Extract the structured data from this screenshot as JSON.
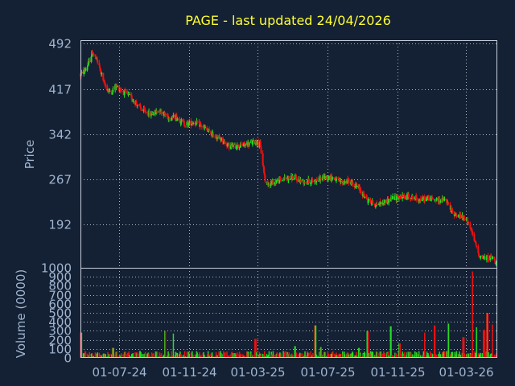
{
  "chart_data": [
    {
      "type": "candlestick",
      "title": "PAGE - last updated 24/04/2026",
      "ylabel": "Price",
      "y_ticks": [
        192,
        267,
        342,
        417,
        492
      ],
      "ylim": [
        120,
        498
      ],
      "x_ticks": [
        "01-07-24",
        "01-11-24",
        "01-03-25",
        "01-07-25",
        "01-11-25",
        "01-03-26"
      ],
      "x_range": [
        "2024-04-24",
        "2026-04-24"
      ],
      "up_color": "#22dd22",
      "down_color": "#ee1111",
      "grid": true,
      "price_path": [
        [
          "2024-04-24",
          440
        ],
        [
          "2024-05-05",
          452
        ],
        [
          "2024-05-15",
          478
        ],
        [
          "2024-05-25",
          460
        ],
        [
          "2024-06-05",
          425
        ],
        [
          "2024-06-15",
          410
        ],
        [
          "2024-06-25",
          422
        ],
        [
          "2024-07-05",
          415
        ],
        [
          "2024-07-15",
          408
        ],
        [
          "2024-07-25",
          400
        ],
        [
          "2024-08-10",
          382
        ],
        [
          "2024-08-25",
          375
        ],
        [
          "2024-09-10",
          382
        ],
        [
          "2024-09-25",
          370
        ],
        [
          "2024-10-10",
          370
        ],
        [
          "2024-10-25",
          358
        ],
        [
          "2024-11-10",
          362
        ],
        [
          "2024-11-25",
          354
        ],
        [
          "2024-12-10",
          342
        ],
        [
          "2024-12-25",
          335
        ],
        [
          "2025-01-10",
          322
        ],
        [
          "2025-01-25",
          322
        ],
        [
          "2025-02-10",
          325
        ],
        [
          "2025-02-25",
          330
        ],
        [
          "2025-03-05",
          325
        ],
        [
          "2025-03-15",
          260
        ],
        [
          "2025-03-30",
          262
        ],
        [
          "2025-04-15",
          268
        ],
        [
          "2025-05-01",
          270
        ],
        [
          "2025-05-20",
          263
        ],
        [
          "2025-06-10",
          265
        ],
        [
          "2025-06-25",
          270
        ],
        [
          "2025-07-10",
          270
        ],
        [
          "2025-07-25",
          262
        ],
        [
          "2025-08-10",
          264
        ],
        [
          "2025-08-25",
          252
        ],
        [
          "2025-09-10",
          232
        ],
        [
          "2025-09-25",
          225
        ],
        [
          "2025-10-10",
          230
        ],
        [
          "2025-10-25",
          236
        ],
        [
          "2025-11-10",
          238
        ],
        [
          "2025-11-25",
          238
        ],
        [
          "2025-12-10",
          233
        ],
        [
          "2025-12-25",
          236
        ],
        [
          "2026-01-10",
          232
        ],
        [
          "2026-01-25",
          232
        ],
        [
          "2026-02-05",
          212
        ],
        [
          "2026-02-20",
          205
        ],
        [
          "2026-03-05",
          198
        ],
        [
          "2026-03-15",
          168
        ],
        [
          "2026-03-25",
          140
        ],
        [
          "2026-04-05",
          135
        ],
        [
          "2026-04-15",
          138
        ],
        [
          "2026-04-24",
          130
        ]
      ]
    },
    {
      "type": "bar",
      "ylabel": "Volume (0000)",
      "y_ticks": [
        0,
        100,
        200,
        300,
        400,
        500,
        600,
        700,
        800,
        900,
        1000
      ],
      "ylim": [
        0,
        1000
      ],
      "x_range": [
        "2024-04-24",
        "2026-04-24"
      ],
      "base_level": 45,
      "spikes": [
        [
          "2024-04-25",
          280
        ],
        [
          "2024-06-20",
          110
        ],
        [
          "2024-09-20",
          300
        ],
        [
          "2024-10-05",
          270
        ],
        [
          "2025-02-25",
          210
        ],
        [
          "2025-05-05",
          130
        ],
        [
          "2025-06-10",
          360
        ],
        [
          "2025-06-20",
          120
        ],
        [
          "2025-08-25",
          110
        ],
        [
          "2025-09-10",
          300
        ],
        [
          "2025-10-20",
          350
        ],
        [
          "2025-11-05",
          160
        ],
        [
          "2025-12-20",
          280
        ],
        [
          "2026-01-05",
          360
        ],
        [
          "2026-01-30",
          380
        ],
        [
          "2026-02-25",
          230
        ],
        [
          "2026-03-14",
          960
        ],
        [
          "2026-03-21",
          340
        ],
        [
          "2026-04-02",
          310
        ],
        [
          "2026-04-08",
          500
        ],
        [
          "2026-04-18",
          370
        ]
      ]
    }
  ]
}
